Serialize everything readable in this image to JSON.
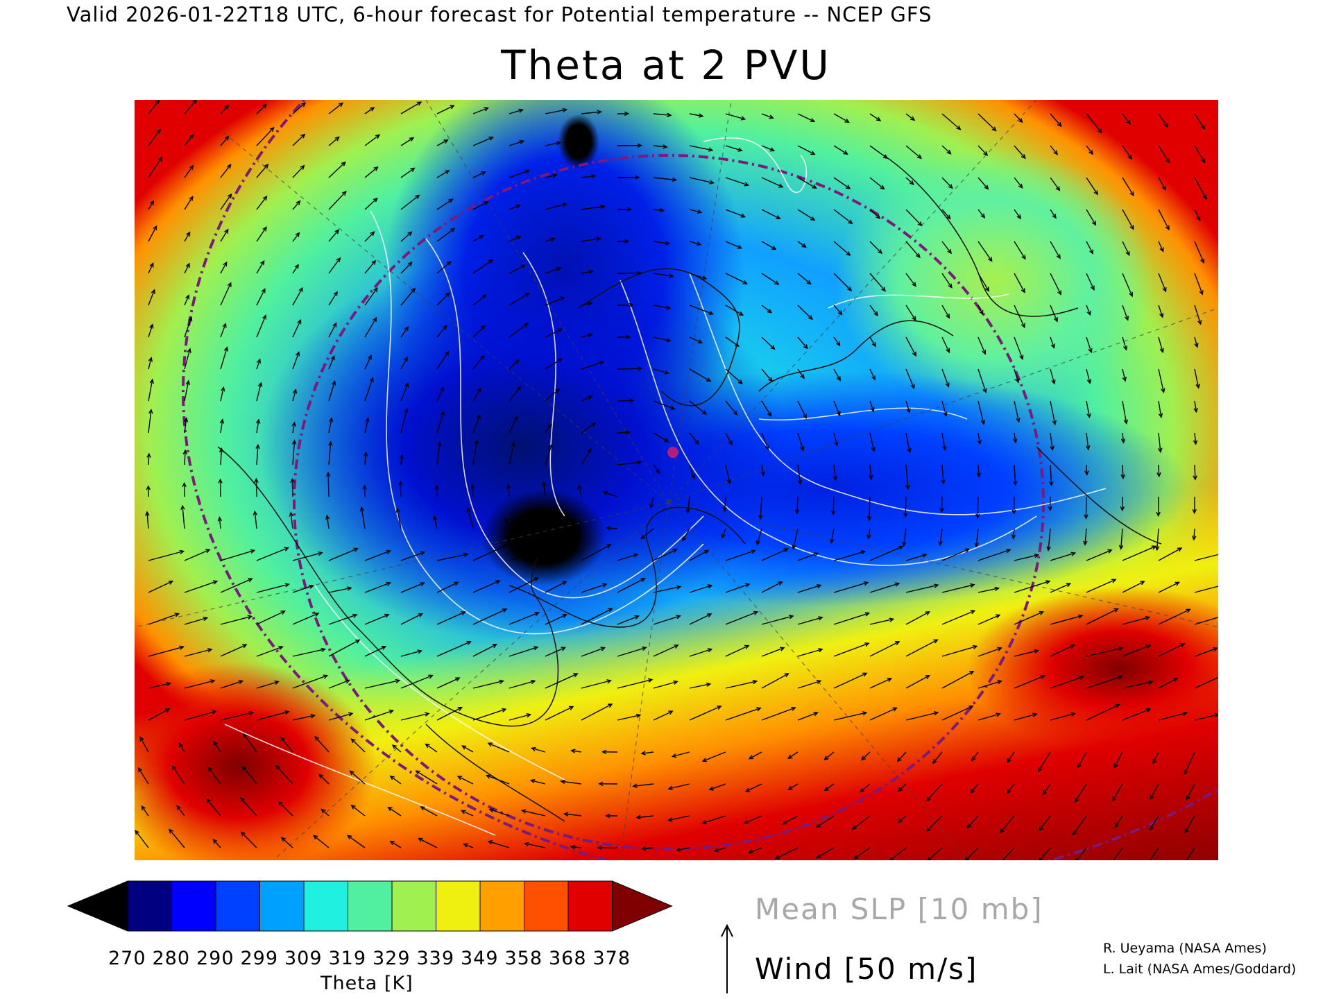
{
  "header": {
    "valid_line": "Valid 2026-01-22T18 UTC, 6-hour forecast for Potential temperature -- NCEP GFS",
    "title": "Theta at 2 PVU"
  },
  "map": {
    "field": "Potential temperature on 2 PVU surface",
    "marker_color": "#b0207a",
    "circle_color": "#7a1a7a"
  },
  "colorbar": {
    "label": "Theta [K]",
    "ticks": [
      "270",
      "280",
      "290",
      "299",
      "309",
      "319",
      "329",
      "339",
      "349",
      "358",
      "368",
      "378"
    ],
    "colors": [
      "#000000",
      "#000080",
      "#0000ff",
      "#0040ff",
      "#00a0ff",
      "#20f0e0",
      "#50f0a0",
      "#a0f050",
      "#f0f010",
      "#ffa000",
      "#ff5000",
      "#e00000",
      "#800000"
    ]
  },
  "legend": {
    "slp": "Mean SLP [10 mb]",
    "wind": "Wind [50 m/s]",
    "slp_color": "#a8a8a8"
  },
  "credits": {
    "line1": "R. Ueyama (NASA Ames)",
    "line2": "L. Lait (NASA Ames/Goddard)"
  }
}
